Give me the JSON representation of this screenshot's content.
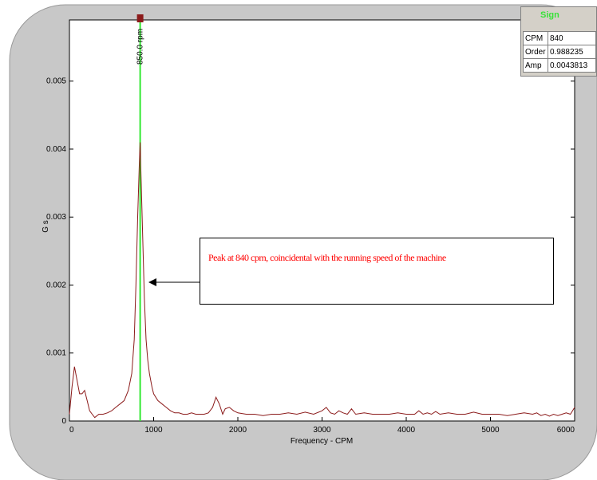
{
  "colors": {
    "series": "#8b1a1a",
    "cursor": "#33e833",
    "annotation": "#ff0000",
    "frame_bg": "#c8c8c8"
  },
  "cursor_label": "850.0 rpm",
  "info_panel": {
    "title": "Sign",
    "rows": [
      {
        "key": "CPM",
        "value": "840"
      },
      {
        "key": "Order",
        "value": "0.988235"
      },
      {
        "key": "Amp",
        "value": "0.0043813"
      }
    ]
  },
  "annotation": {
    "text": "Peak at 840 cpm, coincidental with the running speed of the machine"
  },
  "chart_data": {
    "type": "line",
    "xlabel": "Frequency - CPM",
    "ylabel": "G s",
    "xlim": [
      0,
      6000
    ],
    "ylim": [
      0,
      0.0059
    ],
    "x_ticks": [
      "0",
      "1000",
      "2000",
      "3000",
      "4000",
      "5000",
      "6000"
    ],
    "y_ticks": [
      "0",
      "0.001",
      "0.002",
      "0.003",
      "0.004",
      "0.005"
    ],
    "cursor_x": 840,
    "series": [
      {
        "x": [
          0,
          30,
          60,
          90,
          120,
          150,
          180,
          210,
          240,
          270,
          300,
          350,
          400,
          450,
          500,
          550,
          600,
          650,
          700,
          740,
          770,
          790,
          810,
          830,
          840,
          850,
          870,
          890,
          910,
          930,
          950,
          980,
          1000,
          1050,
          1100,
          1150,
          1200,
          1250,
          1300,
          1350,
          1400,
          1450,
          1500,
          1550,
          1600,
          1650,
          1700,
          1740,
          1780,
          1820,
          1850,
          1900,
          1950,
          2000,
          2100,
          2200,
          2300,
          2400,
          2500,
          2600,
          2700,
          2800,
          2900,
          3000,
          3050,
          3100,
          3150,
          3200,
          3250,
          3300,
          3350,
          3400,
          3500,
          3600,
          3700,
          3800,
          3900,
          4000,
          4100,
          4150,
          4200,
          4250,
          4300,
          4350,
          4400,
          4500,
          4600,
          4700,
          4800,
          4900,
          5000,
          5100,
          5200,
          5300,
          5400,
          5500,
          5550,
          5600,
          5650,
          5700,
          5750,
          5800,
          5850,
          5900,
          5950,
          6000
        ],
        "values": [
          0.0001,
          0.0005,
          0.0008,
          0.0006,
          0.0004,
          0.0004,
          0.00045,
          0.0003,
          0.00015,
          0.0001,
          5e-05,
          0.0001,
          0.0001,
          0.00012,
          0.00015,
          0.0002,
          0.00025,
          0.0003,
          0.00045,
          0.0007,
          0.0012,
          0.002,
          0.003,
          0.0038,
          0.0041,
          0.0036,
          0.0027,
          0.0018,
          0.0012,
          0.0009,
          0.0007,
          0.0005,
          0.0004,
          0.0003,
          0.00025,
          0.0002,
          0.00015,
          0.00012,
          0.00012,
          0.0001,
          0.0001,
          0.00012,
          0.0001,
          0.0001,
          0.0001,
          0.00012,
          0.0002,
          0.00035,
          0.00025,
          0.0001,
          0.00018,
          0.0002,
          0.00015,
          0.00012,
          0.0001,
          0.0001,
          8e-05,
          0.0001,
          0.0001,
          0.00012,
          0.0001,
          0.00013,
          0.0001,
          0.00015,
          0.0002,
          0.00012,
          0.0001,
          0.00015,
          0.00012,
          0.0001,
          0.00018,
          0.0001,
          0.00012,
          0.0001,
          0.0001,
          0.0001,
          0.00012,
          0.0001,
          0.0001,
          0.00015,
          0.0001,
          0.00012,
          0.0001,
          0.00014,
          0.0001,
          0.00012,
          0.0001,
          0.0001,
          0.00013,
          0.0001,
          0.0001,
          0.0001,
          8e-05,
          0.0001,
          0.00012,
          0.0001,
          0.00012,
          8e-05,
          0.0001,
          7e-05,
          0.0001,
          8e-05,
          0.0001,
          0.00012,
          0.0001,
          0.0002
        ]
      }
    ]
  }
}
